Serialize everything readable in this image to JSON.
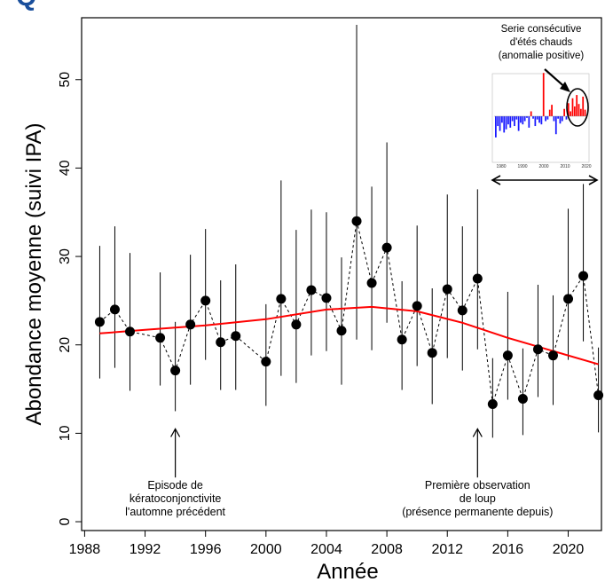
{
  "top_title": "Q",
  "chart_data": {
    "type": "scatter",
    "xlabel": "Année",
    "ylabel": "Abondance moyenne (suivi IPA)",
    "xlim": [
      1987.8,
      2022.2
    ],
    "ylim": [
      -1,
      57
    ],
    "xticks": [
      1988,
      1992,
      1996,
      2000,
      2004,
      2008,
      2012,
      2016,
      2020
    ],
    "yticks": [
      0,
      10,
      20,
      30,
      40,
      50
    ],
    "grid": false,
    "series": [
      {
        "style": "points-dashed-with-error-bars",
        "points": [
          {
            "x": 1989,
            "y": 22.6,
            "lo": 16.2,
            "hi": 31.2
          },
          {
            "x": 1990,
            "y": 24.0,
            "lo": 17.4,
            "hi": 33.4
          },
          {
            "x": 1991,
            "y": 21.5,
            "lo": 14.8,
            "hi": 30.4
          },
          {
            "x": 1993,
            "y": 20.8,
            "lo": 15.4,
            "hi": 28.2
          },
          {
            "x": 1994,
            "y": 17.1,
            "lo": 12.5,
            "hi": 22.6
          },
          {
            "x": 1995,
            "y": 22.3,
            "lo": 15.5,
            "hi": 30.2
          },
          {
            "x": 1996,
            "y": 25.0,
            "lo": 18.3,
            "hi": 33.1
          },
          {
            "x": 1997,
            "y": 20.3,
            "lo": 14.9,
            "hi": 27.3
          },
          {
            "x": 1998,
            "y": 21.0,
            "lo": 14.9,
            "hi": 29.1
          },
          {
            "x": 2000,
            "y": 18.1,
            "lo": 13.1,
            "hi": 24.6
          },
          {
            "x": 2001,
            "y": 25.2,
            "lo": 16.5,
            "hi": 38.6
          },
          {
            "x": 2002,
            "y": 22.3,
            "lo": 15.7,
            "hi": 33.0
          },
          {
            "x": 2003,
            "y": 26.2,
            "lo": 18.8,
            "hi": 35.3
          },
          {
            "x": 2004,
            "y": 25.3,
            "lo": 19.3,
            "hi": 35.0
          },
          {
            "x": 2005,
            "y": 21.6,
            "lo": 15.5,
            "hi": 29.9
          },
          {
            "x": 2006,
            "y": 34.0,
            "lo": 20.6,
            "hi": 56.2
          },
          {
            "x": 2007,
            "y": 27.0,
            "lo": 19.4,
            "hi": 37.9
          },
          {
            "x": 2008,
            "y": 31.0,
            "lo": 22.5,
            "hi": 42.9
          },
          {
            "x": 2009,
            "y": 20.6,
            "lo": 14.9,
            "hi": 27.2
          },
          {
            "x": 2010,
            "y": 24.4,
            "lo": 17.6,
            "hi": 33.5
          },
          {
            "x": 2011,
            "y": 19.1,
            "lo": 13.3,
            "hi": 26.4
          },
          {
            "x": 2012,
            "y": 26.3,
            "lo": 18.5,
            "hi": 37.0
          },
          {
            "x": 2013,
            "y": 23.9,
            "lo": 17.1,
            "hi": 33.4
          },
          {
            "x": 2014,
            "y": 27.5,
            "lo": 19.5,
            "hi": 37.6
          },
          {
            "x": 2015,
            "y": 13.3,
            "lo": 9.5,
            "hi": 18.5
          },
          {
            "x": 2016,
            "y": 18.8,
            "lo": 13.8,
            "hi": 26.0
          },
          {
            "x": 2017,
            "y": 13.9,
            "lo": 9.8,
            "hi": 19.6
          },
          {
            "x": 2018,
            "y": 19.5,
            "lo": 14.1,
            "hi": 26.8
          },
          {
            "x": 2019,
            "y": 18.8,
            "lo": 13.2,
            "hi": 25.6
          },
          {
            "x": 2020,
            "y": 25.2,
            "lo": 18.3,
            "hi": 35.4
          },
          {
            "x": 2021,
            "y": 27.8,
            "lo": 20.4,
            "hi": 38.2
          },
          {
            "x": 2022,
            "y": 14.3,
            "lo": 10.1,
            "hi": 19.7
          }
        ],
        "color": "#000000"
      },
      {
        "style": "trend-line",
        "color": "#ff0000",
        "points": [
          {
            "x": 1989,
            "y": 21.3
          },
          {
            "x": 1992,
            "y": 21.7
          },
          {
            "x": 1996,
            "y": 22.2
          },
          {
            "x": 2000,
            "y": 22.9
          },
          {
            "x": 2004,
            "y": 24.0
          },
          {
            "x": 2007,
            "y": 24.3
          },
          {
            "x": 2010,
            "y": 23.8
          },
          {
            "x": 2013,
            "y": 22.5
          },
          {
            "x": 2016,
            "y": 20.8
          },
          {
            "x": 2019,
            "y": 19.3
          },
          {
            "x": 2022,
            "y": 17.8
          }
        ]
      }
    ],
    "annotations": [
      {
        "lines": [
          "Episode de",
          "kératoconjonctivite",
          "l'automne précédent"
        ],
        "x": 1994,
        "arrow_from_y": 5,
        "arrow_to_y": 10.5
      },
      {
        "lines": [
          "Première observation",
          "de loup",
          "(présence permanente depuis)"
        ],
        "x": 2014,
        "arrow_from_y": 5,
        "arrow_to_y": 10.5
      }
    ],
    "inset": {
      "caption_lines": [
        "Serie consécutive",
        "d'étés chauds",
        "(anomalie positive)"
      ],
      "x_ticks": [
        "1980",
        "1990",
        "2000",
        "2010",
        "2020"
      ],
      "bars": [
        -2.6,
        -1.2,
        -1.8,
        -0.8,
        -2.0,
        -1.6,
        -1.0,
        -1.4,
        -0.6,
        -1.2,
        -0.4,
        -1.8,
        -0.8,
        -1.0,
        -0.6,
        -0.2,
        -1.4,
        0.6,
        -0.3,
        -1.2,
        -0.4,
        -0.8,
        -1.0,
        5.3,
        -0.6,
        -0.4,
        0.8,
        1.4,
        -0.6,
        -2.2,
        -0.3,
        -0.9,
        -0.6,
        0.9,
        -0.4,
        1.6,
        0.6,
        2.2,
        1.2,
        2.6,
        1.5,
        0.9,
        2.4,
        0.8
      ],
      "positive_color": "#ff0000",
      "negative_color": "#1a1aff"
    }
  }
}
